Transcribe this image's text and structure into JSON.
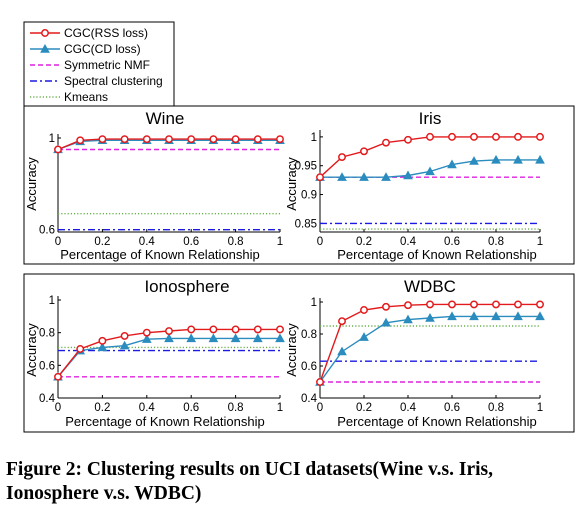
{
  "legend": {
    "placement": "top-left",
    "entries": [
      {
        "label": "CGC(RSS loss)",
        "color": "#e31a1c",
        "style": "solid",
        "marker": "circle"
      },
      {
        "label": "CGC(CD loss)",
        "color": "#2b8cbe",
        "style": "solid",
        "marker": "triangle"
      },
      {
        "label": "Symmetric NMF",
        "color": "#e020e0",
        "style": "dashed",
        "marker": "none"
      },
      {
        "label": "Spectral clustering",
        "color": "#1a1ae0",
        "style": "dashdot",
        "marker": "none"
      },
      {
        "label": "Kmeans",
        "color": "#6ab04c",
        "style": "dotted",
        "marker": "none"
      }
    ]
  },
  "caption": "Figure 2: Clustering results on UCI datasets(Wine v.s. Iris, Ionosphere v.s. WDBC)",
  "chart_data": [
    {
      "type": "line",
      "title": "Wine",
      "xlabel": "Percentage of Known Relationship",
      "ylabel": "Accuracy",
      "x": [
        0,
        0.1,
        0.2,
        0.3,
        0.4,
        0.5,
        0.6,
        0.7,
        0.8,
        0.9,
        1.0
      ],
      "xticks": [
        "0",
        "0.2",
        "0.4",
        "0.6",
        "0.8",
        "1"
      ],
      "ylim": [
        0.59,
        1.0
      ],
      "yticks": [
        0.6,
        1
      ],
      "ytick_labels": [
        "0.6",
        "1"
      ],
      "series": [
        {
          "name": "CGC(RSS loss)",
          "values": [
            0.95,
            0.99,
            0.995,
            0.995,
            0.995,
            0.995,
            0.995,
            0.995,
            0.995,
            0.995,
            0.995
          ]
        },
        {
          "name": "CGC(CD loss)",
          "values": [
            0.95,
            0.985,
            0.99,
            0.99,
            0.99,
            0.99,
            0.99,
            0.99,
            0.99,
            0.99,
            0.99
          ]
        },
        {
          "name": "Symmetric NMF",
          "values": [
            0.95,
            0.95,
            0.95,
            0.95,
            0.95,
            0.95,
            0.95,
            0.95,
            0.95,
            0.95,
            0.95
          ]
        },
        {
          "name": "Spectral clustering",
          "values": [
            0.6,
            0.6,
            0.6,
            0.6,
            0.6,
            0.6,
            0.6,
            0.6,
            0.6,
            0.6,
            0.6
          ]
        },
        {
          "name": "Kmeans",
          "values": [
            0.67,
            0.67,
            0.67,
            0.67,
            0.67,
            0.67,
            0.67,
            0.67,
            0.67,
            0.67,
            0.67
          ]
        }
      ]
    },
    {
      "type": "line",
      "title": "Iris",
      "xlabel": "Percentage of Known Relationship",
      "ylabel": "Accuracy",
      "x": [
        0,
        0.1,
        0.2,
        0.3,
        0.4,
        0.5,
        0.6,
        0.7,
        0.8,
        0.9,
        1.0
      ],
      "xticks": [
        "0",
        "0.2",
        "0.4",
        "0.6",
        "0.8",
        "1"
      ],
      "ylim": [
        0.835,
        1.005
      ],
      "yticks": [
        0.85,
        0.9,
        0.95,
        1
      ],
      "ytick_labels": [
        "0.85",
        "0.9",
        "0.95",
        "1"
      ],
      "series": [
        {
          "name": "CGC(RSS loss)",
          "values": [
            0.93,
            0.965,
            0.975,
            0.99,
            0.995,
            1.0,
            1.0,
            1.0,
            1.0,
            1.0,
            1.0
          ]
        },
        {
          "name": "CGC(CD loss)",
          "values": [
            0.93,
            0.93,
            0.93,
            0.93,
            0.933,
            0.94,
            0.952,
            0.958,
            0.96,
            0.96,
            0.96
          ]
        },
        {
          "name": "Symmetric NMF",
          "values": [
            0.93,
            0.93,
            0.93,
            0.93,
            0.93,
            0.93,
            0.93,
            0.93,
            0.93,
            0.93,
            0.93
          ]
        },
        {
          "name": "Spectral clustering",
          "values": [
            0.85,
            0.85,
            0.85,
            0.85,
            0.85,
            0.85,
            0.85,
            0.85,
            0.85,
            0.85,
            0.85
          ]
        },
        {
          "name": "Kmeans",
          "values": [
            0.84,
            0.84,
            0.84,
            0.84,
            0.84,
            0.84,
            0.84,
            0.84,
            0.84,
            0.84,
            0.84
          ]
        }
      ]
    },
    {
      "type": "line",
      "title": "Ionosphere",
      "xlabel": "Percentage of Known Relationship",
      "ylabel": "Accuracy",
      "x": [
        0,
        0.1,
        0.2,
        0.3,
        0.4,
        0.5,
        0.6,
        0.7,
        0.8,
        0.9,
        1.0
      ],
      "xticks": [
        "0",
        "0.2",
        "0.4",
        "0.6",
        "0.8",
        "1"
      ],
      "ylim": [
        0.4,
        1.0
      ],
      "yticks": [
        0.4,
        0.6,
        0.8,
        1
      ],
      "ytick_labels": [
        "0.4",
        "0.6",
        "0.8",
        "1"
      ],
      "series": [
        {
          "name": "CGC(RSS loss)",
          "values": [
            0.53,
            0.7,
            0.75,
            0.78,
            0.8,
            0.81,
            0.82,
            0.82,
            0.82,
            0.82,
            0.82
          ]
        },
        {
          "name": "CGC(CD loss)",
          "values": [
            0.53,
            0.69,
            0.71,
            0.72,
            0.76,
            0.765,
            0.765,
            0.765,
            0.765,
            0.765,
            0.765
          ]
        },
        {
          "name": "Symmetric NMF",
          "values": [
            0.53,
            0.53,
            0.53,
            0.53,
            0.53,
            0.53,
            0.53,
            0.53,
            0.53,
            0.53,
            0.53
          ]
        },
        {
          "name": "Spectral clustering",
          "values": [
            0.69,
            0.69,
            0.69,
            0.69,
            0.69,
            0.69,
            0.69,
            0.69,
            0.69,
            0.69,
            0.69
          ]
        },
        {
          "name": "Kmeans",
          "values": [
            0.71,
            0.71,
            0.71,
            0.71,
            0.71,
            0.71,
            0.71,
            0.71,
            0.71,
            0.71,
            0.71
          ]
        }
      ]
    },
    {
      "type": "line",
      "title": "WDBC",
      "xlabel": "Percentage of Known Relationship",
      "ylabel": "Accuracy",
      "x": [
        0,
        0.1,
        0.2,
        0.3,
        0.4,
        0.5,
        0.6,
        0.7,
        0.8,
        0.9,
        1.0
      ],
      "xticks": [
        "0",
        "0.2",
        "0.4",
        "0.6",
        "0.8",
        "1"
      ],
      "ylim": [
        0.4,
        1.0
      ],
      "yticks": [
        0.4,
        0.6,
        0.8,
        1
      ],
      "ytick_labels": [
        "0.4",
        "0.6",
        "0.8",
        "1"
      ],
      "series": [
        {
          "name": "CGC(RSS loss)",
          "values": [
            0.5,
            0.88,
            0.95,
            0.97,
            0.98,
            0.985,
            0.985,
            0.985,
            0.985,
            0.985,
            0.985
          ]
        },
        {
          "name": "CGC(CD loss)",
          "values": [
            0.5,
            0.69,
            0.78,
            0.87,
            0.89,
            0.9,
            0.91,
            0.91,
            0.91,
            0.91,
            0.91
          ]
        },
        {
          "name": "Symmetric NMF",
          "values": [
            0.5,
            0.5,
            0.5,
            0.5,
            0.5,
            0.5,
            0.5,
            0.5,
            0.5,
            0.5,
            0.5
          ]
        },
        {
          "name": "Spectral clustering",
          "values": [
            0.63,
            0.63,
            0.63,
            0.63,
            0.63,
            0.63,
            0.63,
            0.63,
            0.63,
            0.63,
            0.63
          ]
        },
        {
          "name": "Kmeans",
          "values": [
            0.85,
            0.85,
            0.85,
            0.85,
            0.85,
            0.85,
            0.85,
            0.85,
            0.85,
            0.85,
            0.85
          ]
        }
      ]
    }
  ]
}
